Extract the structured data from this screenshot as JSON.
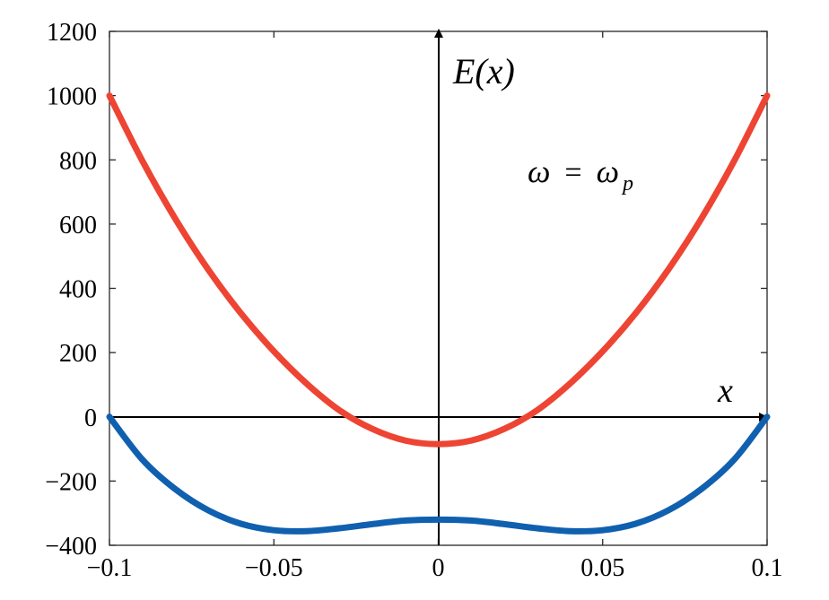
{
  "chart_data": {
    "type": "line",
    "title": "",
    "xlabel": "",
    "ylabel": "",
    "xlim": [
      -0.1,
      0.1
    ],
    "ylim": [
      -400,
      1200
    ],
    "x_ticks": [
      -0.1,
      -0.05,
      0,
      0.05,
      0.1
    ],
    "x_tick_labels": [
      "−0.1",
      "−0.05",
      "0",
      "0.05",
      "0.1"
    ],
    "y_ticks": [
      -400,
      -200,
      0,
      200,
      400,
      600,
      800,
      1000,
      1200
    ],
    "y_tick_labels": [
      "−400",
      "−200",
      "0",
      "200",
      "400",
      "600",
      "800",
      "1000",
      "1200"
    ],
    "grid": false,
    "box": true,
    "series": [
      {
        "color": "#ee4433",
        "x": [
          -0.1,
          -0.09,
          -0.08,
          -0.07,
          -0.06,
          -0.05,
          -0.04,
          -0.03,
          -0.02,
          -0.01,
          0,
          0.01,
          0.02,
          0.03,
          0.04,
          0.05,
          0.06,
          0.07,
          0.08,
          0.09,
          0.1
        ],
        "y": [
          1000,
          797,
          617,
          459,
          322,
          204,
          103,
          20,
          -38,
          -74,
          -85,
          -74,
          -38,
          20,
          103,
          204,
          322,
          459,
          617,
          797,
          1000
        ]
      },
      {
        "color": "#1060b0",
        "x": [
          -0.1,
          -0.09,
          -0.08,
          -0.07,
          -0.06,
          -0.05,
          -0.04,
          -0.03,
          -0.02,
          -0.01,
          0,
          0.01,
          0.02,
          0.03,
          0.04,
          0.05,
          0.06,
          0.07,
          0.08,
          0.09,
          0.1
        ],
        "y": [
          0,
          -133,
          -225,
          -291,
          -333,
          -353,
          -356,
          -347,
          -334,
          -323,
          -320,
          -323,
          -334,
          -347,
          -356,
          -353,
          -333,
          -291,
          -225,
          -133,
          0
        ]
      }
    ],
    "axis_labels": {
      "y_axis_label": "E(x)",
      "x_axis_label": "x"
    },
    "annotation": {
      "omega": "ω",
      "equals": "=",
      "omega_sub": "p"
    }
  }
}
